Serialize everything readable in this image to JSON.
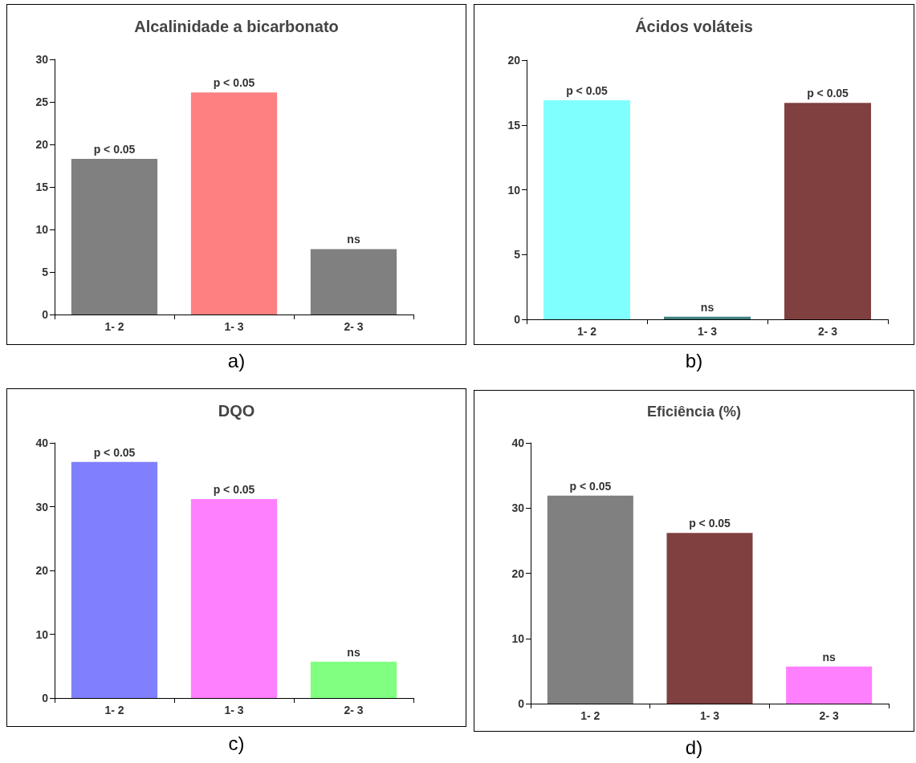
{
  "chart_data": [
    {
      "type": "bar",
      "title": "Alcalinidade a bicarbonato",
      "categories": [
        "1- 2",
        "1- 3",
        "2- 3"
      ],
      "values": [
        18.3,
        26.1,
        7.7
      ],
      "colors": [
        "#808080",
        "#ff8080",
        "#808080"
      ],
      "value_labels": [
        "p < 0.05",
        "p < 0.05",
        "ns"
      ],
      "ylim": [
        0,
        30
      ],
      "yticks": [
        0,
        5,
        10,
        15,
        20,
        25,
        30
      ],
      "annotations": [
        "a)"
      ]
    },
    {
      "type": "bar",
      "title": "Ácidos voláteis",
      "categories": [
        "1- 2",
        "1- 3",
        "2- 3"
      ],
      "values": [
        16.9,
        0.2,
        16.7
      ],
      "colors": [
        "#80ffff",
        "#408080",
        "#804040"
      ],
      "value_labels": [
        "p < 0.05",
        "ns",
        "p < 0.05"
      ],
      "ylim": [
        0,
        20
      ],
      "yticks": [
        0,
        5,
        10,
        15,
        20
      ],
      "annotations": [
        "b)"
      ]
    },
    {
      "type": "bar",
      "title": "DQO",
      "categories": [
        "1- 2",
        "1- 3",
        "2- 3"
      ],
      "values": [
        37,
        31.2,
        5.7
      ],
      "colors": [
        "#8080ff",
        "#ff80ff",
        "#80ff80"
      ],
      "value_labels": [
        "p < 0.05",
        "p < 0.05",
        "ns"
      ],
      "ylim": [
        0,
        40
      ],
      "yticks": [
        0,
        10,
        20,
        30,
        40
      ],
      "annotations": [
        "c)"
      ]
    },
    {
      "type": "bar",
      "title": "Eficiência (%)",
      "categories": [
        "1- 2",
        "1- 3",
        "2- 3"
      ],
      "values": [
        31.9,
        26.2,
        5.7
      ],
      "colors": [
        "#808080",
        "#804040",
        "#ff80ff"
      ],
      "value_labels": [
        "p < 0.05",
        "p < 0.05",
        "ns"
      ],
      "ylim": [
        0,
        40
      ],
      "yticks": [
        0,
        10,
        20,
        30,
        40
      ],
      "annotations": [
        "d)"
      ]
    }
  ]
}
